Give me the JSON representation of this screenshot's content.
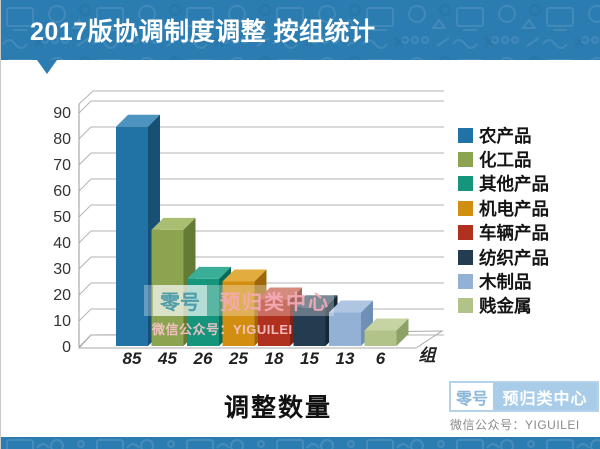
{
  "header": {
    "title": "2017版协调制度调整 按组统计"
  },
  "chart_data": {
    "type": "bar",
    "projection": "3d",
    "title": "2017版协调制度调整 按组统计",
    "categories": [
      "85",
      "45",
      "26",
      "25",
      "18",
      "15",
      "13",
      "6"
    ],
    "values": [
      85,
      45,
      26,
      25,
      18,
      15,
      13,
      6
    ],
    "series": [
      {
        "name": "农产品",
        "value": 85,
        "color": "#2173a6",
        "top": "#4c94bf",
        "side": "#174f75"
      },
      {
        "name": "化工品",
        "value": 45,
        "color": "#8ca34f",
        "top": "#a9be71",
        "side": "#637b34"
      },
      {
        "name": "其他产品",
        "value": 26,
        "color": "#14957c",
        "top": "#3bae97",
        "side": "#0b6a57"
      },
      {
        "name": "机电产品",
        "value": 25,
        "color": "#d28e11",
        "top": "#e3ac3e",
        "side": "#9c680b"
      },
      {
        "name": "车辆产品",
        "value": 18,
        "color": "#b0311f",
        "top": "#c65847",
        "side": "#7e2115"
      },
      {
        "name": "纺织产品",
        "value": 15,
        "color": "#243c50",
        "top": "#41596c",
        "side": "#152736"
      },
      {
        "name": "木制品",
        "value": 13,
        "color": "#92b1d4",
        "top": "#aec6e2",
        "side": "#6f8fb4"
      },
      {
        "name": "贱金属",
        "value": 6,
        "color": "#b1c388",
        "top": "#c6d4a4",
        "side": "#8ca266"
      }
    ],
    "yticks": [
      0,
      10,
      20,
      30,
      40,
      50,
      60,
      70,
      80,
      90
    ],
    "ylim": [
      0,
      90
    ],
    "x_axis_unit_label": "组",
    "x_axis_title": "调整数量",
    "legend_position": "right",
    "grid": true
  },
  "watermark": {
    "badge": "零号",
    "name": "预归类中心",
    "line2": "微信公众号：YIGUILEI"
  },
  "footer_logo": {
    "badge": "零号",
    "name": "预归类中心",
    "caption": "微信公众号：YIGUILEI"
  },
  "axis_title": "调整数量"
}
